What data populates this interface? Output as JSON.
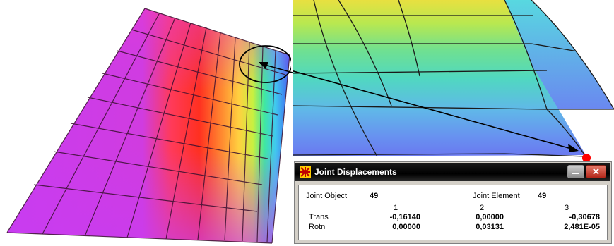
{
  "dialog": {
    "title": "Joint Displacements",
    "minimize_label": "—",
    "close_label": "✕",
    "joint_object_label": "Joint Object",
    "joint_object_value": "49",
    "joint_element_label": "Joint Element",
    "joint_element_value": "49",
    "columns": [
      "1",
      "2",
      "3"
    ],
    "rows": [
      {
        "label": "Trans",
        "values": [
          "-0,16140",
          "0,00000",
          "-0,30678"
        ]
      },
      {
        "label": "Rotn",
        "values": [
          "0,00000",
          "0,03131",
          "2,481E-05"
        ]
      }
    ]
  },
  "icons": {
    "app": "joint-displacement-app-icon",
    "minimize": "minimize-icon",
    "close": "close-icon"
  },
  "colors": {
    "magenta": "#c83cf0",
    "red": "#ff2020",
    "marker": "#ff0000",
    "titlebar": "#000000",
    "dialog_bg": "#d4d0c8"
  }
}
